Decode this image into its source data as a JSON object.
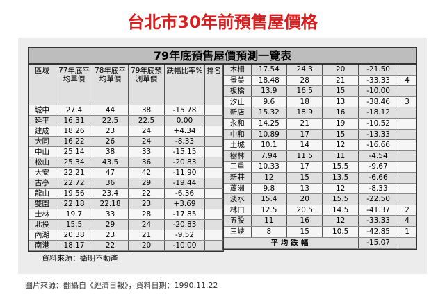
{
  "title": "台北市30年前預售屋價格",
  "table": {
    "title": "79年底預售屋價預測一覽表",
    "columns": [
      "區域",
      "77年底平均單價",
      "78年底平均單價",
      "79年底預測單價",
      "跌幅比率%",
      "排名"
    ],
    "left_rows": [
      [
        "城中",
        "27.4",
        "44",
        "38",
        "-15.78"
      ],
      [
        "延平",
        "16.31",
        "22.5",
        "22.5",
        "0.00"
      ],
      [
        "建成",
        "18.26",
        "23",
        "24",
        "+4.34"
      ],
      [
        "大同",
        "16.22",
        "26",
        "24",
        "-8.33"
      ],
      [
        "中山",
        "25.14",
        "38",
        "33",
        "-15.15"
      ],
      [
        "松山",
        "25.34",
        "43.5",
        "36",
        "-20.83"
      ],
      [
        "大安",
        "22.21",
        "47",
        "42",
        "-11.90"
      ],
      [
        "古亭",
        "22.72",
        "36",
        "29",
        "-19.44"
      ],
      [
        "龍山",
        "19.56",
        "23.4",
        "22",
        "-6.36"
      ],
      [
        "雙園",
        "22.18",
        "22.18",
        "23",
        "+3.69"
      ],
      [
        "士林",
        "19.7",
        "33",
        "28",
        "-17.85"
      ],
      [
        "北投",
        "15.5",
        "29",
        "24",
        "-20.83"
      ],
      [
        "內湖",
        "20.38",
        "23",
        "21",
        "-9.52"
      ],
      [
        "南港",
        "18.17",
        "22",
        "20",
        "-10.00"
      ]
    ],
    "right_rows": [
      [
        "木柵",
        "17.54",
        "24.3",
        "20",
        "-21.50"
      ],
      [
        "景美",
        "18.48",
        "28",
        "21",
        "-33.33",
        "4"
      ],
      [
        "板橋",
        "13.9",
        "16.5",
        "15",
        "-10.00"
      ],
      [
        "汐止",
        "9.6",
        "18",
        "13",
        "-38.46",
        "3"
      ],
      [
        "新店",
        "15.32",
        "18.9",
        "16",
        "-18.12"
      ],
      [
        "永和",
        "14.25",
        "21",
        "19",
        "-10.52"
      ],
      [
        "中和",
        "10.89",
        "17",
        "15",
        "-13.33"
      ],
      [
        "土城",
        "10.1",
        "14",
        "12",
        "-16.66"
      ],
      [
        "樹林",
        "7.94",
        "11.5",
        "11",
        "-4.54"
      ],
      [
        "三重",
        "10.33",
        "17",
        "15.5",
        "-9.67"
      ],
      [
        "新莊",
        "12",
        "15",
        "13.5",
        "-6.66"
      ],
      [
        "蘆洲",
        "9.8",
        "13",
        "12",
        "-8.33"
      ],
      [
        "淡水",
        "15.4",
        "20",
        "15.5",
        "-22.50"
      ],
      [
        "林口",
        "12.5",
        "20.5",
        "14.5",
        "-41.37",
        "2"
      ],
      [
        "五股",
        "11",
        "16",
        "12",
        "-33.33",
        "4"
      ],
      [
        "三峽",
        "8",
        "15",
        "10.5",
        "-42.85",
        "1"
      ]
    ],
    "average": {
      "label": "平均跌幅",
      "value": "-15.07"
    },
    "source": "資料來源：衛明不動產"
  },
  "caption": "圖片來源：翻攝自《經濟日報》，資料日期：1990.11.22"
}
